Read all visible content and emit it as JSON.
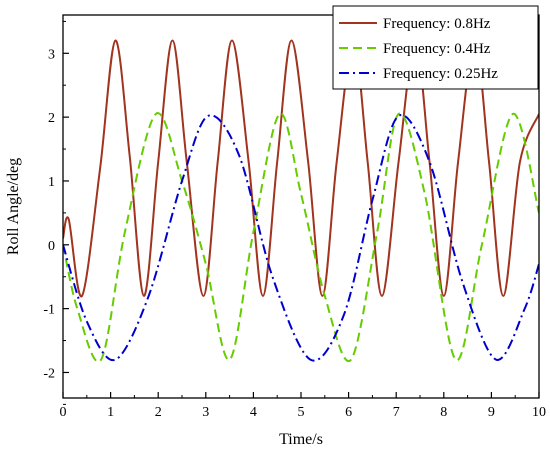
{
  "chart_data": {
    "type": "line",
    "xlabel": "Time/s",
    "ylabel": "Roll Angle/deg",
    "xlim": [
      0,
      10
    ],
    "ylim": [
      -2.4,
      3.6
    ],
    "x_ticks": [
      "0",
      "1",
      "2",
      "3",
      "4",
      "5",
      "6",
      "7",
      "8",
      "9",
      "10"
    ],
    "y_ticks": [
      "-2",
      "-1",
      "0",
      "1",
      "2",
      "3"
    ],
    "grid": false,
    "legend_position": "top-right",
    "series": [
      {
        "name": "Frequency: 0.8Hz",
        "color": "#a0341f",
        "style": "solid",
        "x": [
          0,
          0.12,
          0.4,
          0.78,
          1.1,
          1.4,
          1.7,
          2.0,
          2.3,
          2.6,
          2.95,
          3.25,
          3.55,
          3.9,
          4.2,
          4.5,
          4.8,
          5.15,
          5.45,
          5.75,
          6.1,
          6.4,
          6.7,
          7.05,
          7.4,
          7.7,
          8.0,
          8.3,
          8.65,
          8.95,
          9.25,
          9.6,
          10
        ],
        "y": [
          0.1,
          0.4,
          -0.8,
          1.2,
          3.2,
          1.4,
          -0.8,
          1.3,
          3.2,
          1.3,
          -0.8,
          1.3,
          3.2,
          1.3,
          -0.8,
          1.3,
          3.2,
          1.3,
          -0.8,
          1.3,
          3.2,
          1.3,
          -0.8,
          1.3,
          3.2,
          1.3,
          -0.8,
          1.3,
          3.2,
          1.3,
          -0.8,
          1.3,
          2.05
        ]
      },
      {
        "name": "Frequency: 0.4Hz",
        "color": "#66cc00",
        "style": "dashed",
        "x": [
          0,
          0.3,
          0.8,
          1.3,
          1.95,
          2.5,
          3.0,
          3.5,
          4.0,
          4.55,
          5.0,
          5.5,
          6.05,
          6.6,
          7.05,
          7.6,
          8.25,
          8.8,
          9.45,
          10
        ],
        "y": [
          0,
          -1.0,
          -1.8,
          0.2,
          2.05,
          1.0,
          -0.3,
          -1.8,
          0.2,
          2.05,
          0.8,
          -0.8,
          -1.8,
          0.2,
          2.05,
          0.8,
          -1.8,
          0.0,
          2.05,
          0.5
        ]
      },
      {
        "name": "Frequency: 0.25Hz",
        "color": "#0000cc",
        "style": "dashdot",
        "x": [
          0,
          0.5,
          1.1,
          1.8,
          2.5,
          3.05,
          3.7,
          4.4,
          5.2,
          5.9,
          6.5,
          7.05,
          7.7,
          8.4,
          9.1,
          9.7,
          10
        ],
        "y": [
          0,
          -1.2,
          -1.8,
          -0.8,
          1.0,
          2.02,
          1.4,
          -0.5,
          -1.8,
          -1.1,
          0.7,
          2.02,
          1.3,
          -0.6,
          -1.8,
          -1.0,
          -0.3
        ]
      }
    ]
  }
}
